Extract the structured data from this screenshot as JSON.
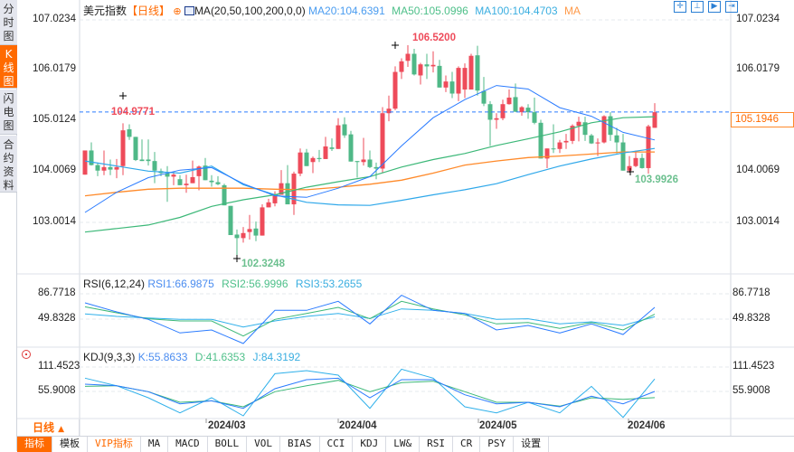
{
  "sidebar": {
    "tabs": [
      {
        "label": "分时图"
      },
      {
        "label": "K线图",
        "active": true
      },
      {
        "label": "闪电图"
      },
      {
        "label": "合约资料"
      }
    ]
  },
  "header": {
    "title": "美元指数",
    "period": "【日线】",
    "ma_params": "MA(20,50,100,200,0,0)",
    "ma20": "MA20:104.6391",
    "ma50": "MA50:105.0996",
    "ma100": "MA100:104.4703",
    "ma200": "MA"
  },
  "toolbar_icons": [
    "crosshair-icon",
    "zoom-in-range-icon",
    "step-forward-icon",
    "jump-to-end-icon"
  ],
  "price_axis": {
    "labels": [
      "107.0234",
      "106.0179",
      "105.0124",
      "104.0069",
      "103.0014"
    ],
    "current": "105.1946"
  },
  "annotations": {
    "high1": "104.9771",
    "high2": "106.5200",
    "low1": "102.3248",
    "low2": "103.9926"
  },
  "rsi": {
    "title": "RSI(6,12,24)",
    "rsi1": "RSI1:66.9875",
    "rsi2": "RSI2:56.9996",
    "rsi3": "RSI3:53.2655",
    "axis": [
      "86.7718",
      "49.8328"
    ]
  },
  "kdj": {
    "title": "KDJ(9,3,3)",
    "k": "K:55.8633",
    "d": "D:41.6353",
    "j": "J:84.3192",
    "axis": [
      "111.4523",
      "55.9008"
    ]
  },
  "period_selector": {
    "label": "日线",
    "arrow": "▲"
  },
  "months": [
    "2024/03",
    "2024/04",
    "2024/05",
    "2024/06"
  ],
  "bottom_tabs": [
    "指标",
    "模板",
    "VIP指标",
    "MA",
    "MACD",
    "BOLL",
    "VOL",
    "BIAS",
    "CCI",
    "KDJ",
    "LW&",
    "RSI",
    "CR",
    "PSY",
    "设置"
  ],
  "colors": {
    "up": "#ee4b5a",
    "down": "#4fb887",
    "ma20": "#2a7bff",
    "ma50": "#3cb878",
    "ma100": "#2fa8ea",
    "ma200": "#ff8a2a",
    "accent": "#ff6a00"
  },
  "chart_data": {
    "type": "candlestick",
    "ohlc": [
      [
        103.95,
        104.43,
        103.95,
        104.43
      ],
      [
        104.43,
        104.59,
        104.13,
        104.14
      ],
      [
        104.14,
        104.19,
        103.92,
        104.03
      ],
      [
        104.03,
        104.43,
        103.94,
        104.1
      ],
      [
        104.1,
        104.25,
        103.94,
        104.05
      ],
      [
        104.05,
        104.26,
        103.88,
        104.1
      ],
      [
        104.12,
        104.97,
        103.94,
        104.83
      ],
      [
        104.85,
        104.95,
        104.64,
        104.7
      ],
      [
        104.7,
        104.7,
        104.22,
        104.24
      ],
      [
        104.25,
        104.65,
        104.22,
        104.22
      ],
      [
        104.25,
        104.65,
        104.13,
        104.22
      ],
      [
        104.22,
        104.4,
        103.78,
        104.03
      ],
      [
        104.02,
        104.07,
        103.92,
        103.98
      ],
      [
        103.98,
        104.12,
        103.41,
        103.91
      ],
      [
        103.91,
        104.01,
        103.74,
        103.95
      ],
      [
        103.86,
        103.94,
        103.74,
        103.74
      ],
      [
        103.74,
        103.95,
        103.59,
        103.77
      ],
      [
        103.78,
        104.23,
        103.78,
        103.9
      ],
      [
        103.92,
        104.13,
        103.64,
        104.11
      ],
      [
        104.13,
        104.28,
        103.84,
        103.84
      ],
      [
        103.83,
        103.94,
        103.71,
        103.8
      ],
      [
        103.8,
        103.92,
        103.74,
        103.76
      ],
      [
        103.74,
        103.77,
        103.34,
        103.34
      ],
      [
        103.33,
        103.33,
        102.75,
        102.75
      ],
      [
        102.76,
        102.86,
        102.32,
        102.69
      ],
      [
        102.69,
        102.91,
        102.6,
        102.79
      ],
      [
        102.81,
        103.15,
        102.66,
        102.87
      ],
      [
        102.88,
        103.02,
        102.63,
        102.74
      ],
      [
        102.74,
        103.36,
        102.74,
        103.3
      ],
      [
        103.3,
        103.47,
        103.3,
        103.4
      ],
      [
        103.38,
        103.62,
        103.32,
        103.53
      ],
      [
        103.55,
        104.04,
        103.55,
        103.78
      ],
      [
        103.78,
        104.14,
        103.36,
        103.36
      ],
      [
        103.36,
        104.01,
        103.15,
        103.97
      ],
      [
        103.97,
        104.47,
        103.92,
        104.39
      ],
      [
        104.39,
        104.46,
        104.12,
        104.12
      ],
      [
        104.2,
        104.31,
        103.98,
        104.28
      ],
      [
        104.28,
        104.44,
        104.2,
        104.26
      ],
      [
        104.26,
        104.7,
        104.26,
        104.51
      ],
      [
        104.49,
        104.67,
        104.42,
        104.46
      ],
      [
        104.46,
        105.07,
        104.46,
        104.93
      ],
      [
        104.95,
        105.09,
        104.68,
        104.73
      ],
      [
        104.75,
        104.82,
        104.21,
        104.21
      ],
      [
        104.22,
        104.22,
        103.89,
        104.2
      ],
      [
        104.2,
        104.68,
        104.13,
        104.25
      ],
      [
        104.25,
        104.43,
        104.08,
        104.1
      ],
      [
        104.1,
        104.19,
        103.86,
        104.07
      ],
      [
        104.07,
        105.29,
        103.98,
        105.17
      ],
      [
        105.17,
        105.52,
        105.01,
        105.26
      ],
      [
        105.26,
        106.1,
        105.23,
        105.99
      ],
      [
        105.99,
        106.26,
        105.85,
        106.2
      ],
      [
        106.21,
        106.52,
        106.09,
        106.35
      ],
      [
        106.35,
        106.45,
        105.92,
        105.94
      ],
      [
        105.92,
        106.17,
        105.74,
        106.14
      ],
      [
        106.14,
        106.35,
        105.85,
        106.1
      ],
      [
        106.1,
        106.4,
        105.98,
        106.13
      ],
      [
        106.11,
        106.23,
        105.68,
        105.68
      ],
      [
        105.68,
        105.92,
        105.59,
        105.8
      ],
      [
        105.8,
        105.99,
        105.47,
        105.56
      ],
      [
        105.56,
        106.1,
        105.41,
        106.07
      ],
      [
        105.64,
        106.16,
        105.47,
        106.07
      ],
      [
        105.64,
        106.35,
        105.64,
        106.31
      ],
      [
        106.32,
        106.51,
        105.52,
        105.62
      ],
      [
        105.61,
        105.89,
        105.31,
        105.36
      ],
      [
        105.35,
        105.41,
        104.52,
        105.04
      ],
      [
        105.04,
        105.17,
        104.86,
        105.07
      ],
      [
        105.07,
        105.44,
        105.03,
        105.35
      ],
      [
        105.35,
        105.64,
        105.34,
        105.48
      ],
      [
        105.49,
        105.76,
        105.19,
        105.2
      ],
      [
        105.19,
        105.31,
        105.12,
        105.29
      ],
      [
        105.28,
        105.35,
        105.06,
        105.19
      ],
      [
        105.19,
        105.48,
        104.95,
        104.98
      ],
      [
        104.98,
        105.04,
        104.27,
        104.27
      ],
      [
        104.27,
        104.47,
        104.08,
        104.47
      ],
      [
        104.47,
        104.95,
        104.38,
        104.46
      ],
      [
        104.46,
        104.64,
        104.38,
        104.59
      ],
      [
        104.59,
        104.76,
        104.46,
        104.62
      ],
      [
        104.62,
        104.95,
        104.56,
        104.92
      ],
      [
        104.92,
        105.1,
        104.61,
        105.0
      ],
      [
        104.99,
        105.1,
        104.62,
        104.74
      ],
      [
        104.73,
        104.76,
        104.56,
        104.57
      ],
      [
        104.57,
        104.67,
        104.32,
        104.59
      ],
      [
        104.59,
        105.13,
        104.57,
        105.11
      ],
      [
        105.11,
        105.19,
        104.62,
        104.74
      ],
      [
        104.73,
        104.88,
        104.37,
        104.59
      ],
      [
        104.59,
        104.76,
        104.03,
        104.03
      ],
      [
        104.03,
        104.32,
        103.99,
        104.12
      ],
      [
        104.12,
        104.43,
        104.1,
        104.28
      ],
      [
        104.28,
        104.37,
        104.07,
        104.08
      ],
      [
        104.08,
        104.94,
        103.97,
        104.91
      ],
      [
        104.88,
        105.37,
        104.88,
        105.19
      ]
    ],
    "ma_every_5_bars": {
      "ma20": [
        103.2,
        103.6,
        103.89,
        104.04,
        104.09,
        103.77,
        103.53,
        103.5,
        103.68,
        103.91,
        104.52,
        105.08,
        105.44,
        105.72,
        105.65,
        105.28,
        105.11,
        104.79,
        104.64
      ],
      "ma50": [
        102.81,
        102.88,
        102.95,
        103.1,
        103.32,
        103.45,
        103.55,
        103.7,
        103.81,
        103.91,
        104.1,
        104.25,
        104.37,
        104.53,
        104.66,
        104.8,
        104.98,
        105.08,
        105.1
      ],
      "ma100": [
        104.22,
        104.12,
        104.02,
        103.98,
        104.12,
        103.75,
        103.55,
        103.4,
        103.35,
        103.34,
        103.44,
        103.55,
        103.65,
        103.77,
        103.95,
        104.12,
        104.26,
        104.38,
        104.47
      ],
      "ma200": [
        103.53,
        103.6,
        103.66,
        103.68,
        103.68,
        103.68,
        103.66,
        103.65,
        103.7,
        103.76,
        103.84,
        103.98,
        104.14,
        104.22,
        104.29,
        104.32,
        104.36,
        104.4,
        104.4
      ]
    },
    "rsi_every_5_bars": {
      "rsi1": [
        73.6,
        60.4,
        49.4,
        29.6,
        34.0,
        14.2,
        62.6,
        62.6,
        75.8,
        42.8,
        84.6,
        62.6,
        58.2,
        34.0,
        40.6,
        29.6,
        42.8,
        27.4,
        66.99
      ],
      "rsi2": [
        67.8,
        59.1,
        50.3,
        47.2,
        47.2,
        25.2,
        49.4,
        58.2,
        67.0,
        50.3,
        75.8,
        64.8,
        56.0,
        42.8,
        45.0,
        36.2,
        45.0,
        34.0,
        57.0
      ],
      "rsi3": [
        57.3,
        53.8,
        51.6,
        49.4,
        49.4,
        38.4,
        47.2,
        53.8,
        58.2,
        50.7,
        64.8,
        62.6,
        58.2,
        49.4,
        50.3,
        42.8,
        45.9,
        40.6,
        53.27
      ]
    },
    "kdj_every_5_bars": {
      "k": [
        72.3,
        68.9,
        55.2,
        27.8,
        34.6,
        17.5,
        62.0,
        82.6,
        86.0,
        41.5,
        82.6,
        82.6,
        48.3,
        27.8,
        31.2,
        20.9,
        44.9,
        27.8,
        55.86
      ],
      "d": [
        67.5,
        68.9,
        55.2,
        31.2,
        34.6,
        20.9,
        55.2,
        68.9,
        81.3,
        55.2,
        75.8,
        79.2,
        55.2,
        31.2,
        31.2,
        22.3,
        41.5,
        38.1,
        41.64
      ],
      "j": [
        86.1,
        68.9,
        41.5,
        7.2,
        41.5,
        0.4,
        96.3,
        103.2,
        92.9,
        17.5,
        106.6,
        86.1,
        20.9,
        7.2,
        31.2,
        7.2,
        67.5,
        -3.1,
        84.32
      ]
    },
    "current_price": 105.1946,
    "ylim": [
      102.2,
      107.1
    ]
  }
}
